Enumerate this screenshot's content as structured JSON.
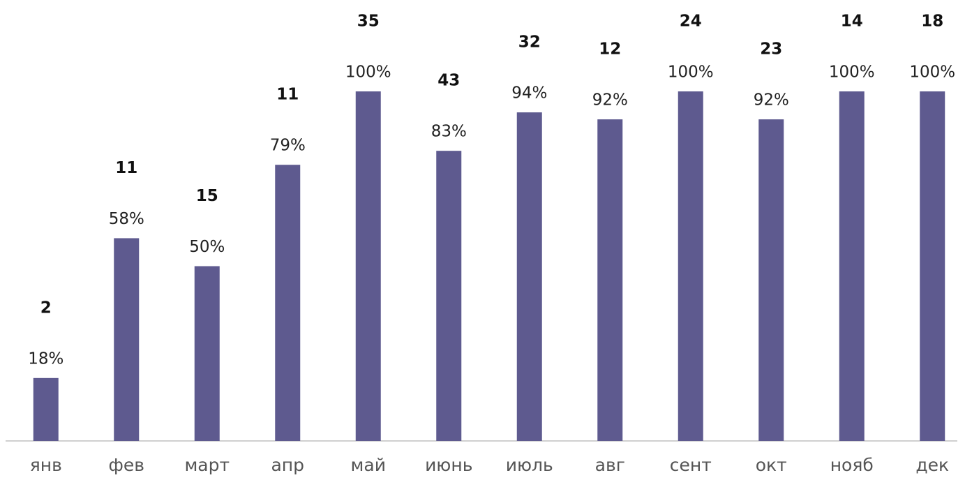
{
  "chart_data": {
    "type": "bar",
    "categories": [
      "янв",
      "фев",
      "март",
      "апр",
      "май",
      "июнь",
      "июль",
      "авг",
      "сент",
      "окт",
      "нояб",
      "дек"
    ],
    "values": [
      18,
      58,
      50,
      79,
      100,
      83,
      94,
      92,
      100,
      92,
      100,
      100
    ],
    "value_labels": [
      "18%",
      "58%",
      "50%",
      "79%",
      "100%",
      "83%",
      "94%",
      "92%",
      "100%",
      "92%",
      "100%",
      "100%"
    ],
    "counts": [
      2,
      11,
      15,
      11,
      35,
      43,
      32,
      12,
      24,
      23,
      14,
      18
    ],
    "color": "#5e5a8f",
    "ylim": [
      0,
      100
    ]
  }
}
